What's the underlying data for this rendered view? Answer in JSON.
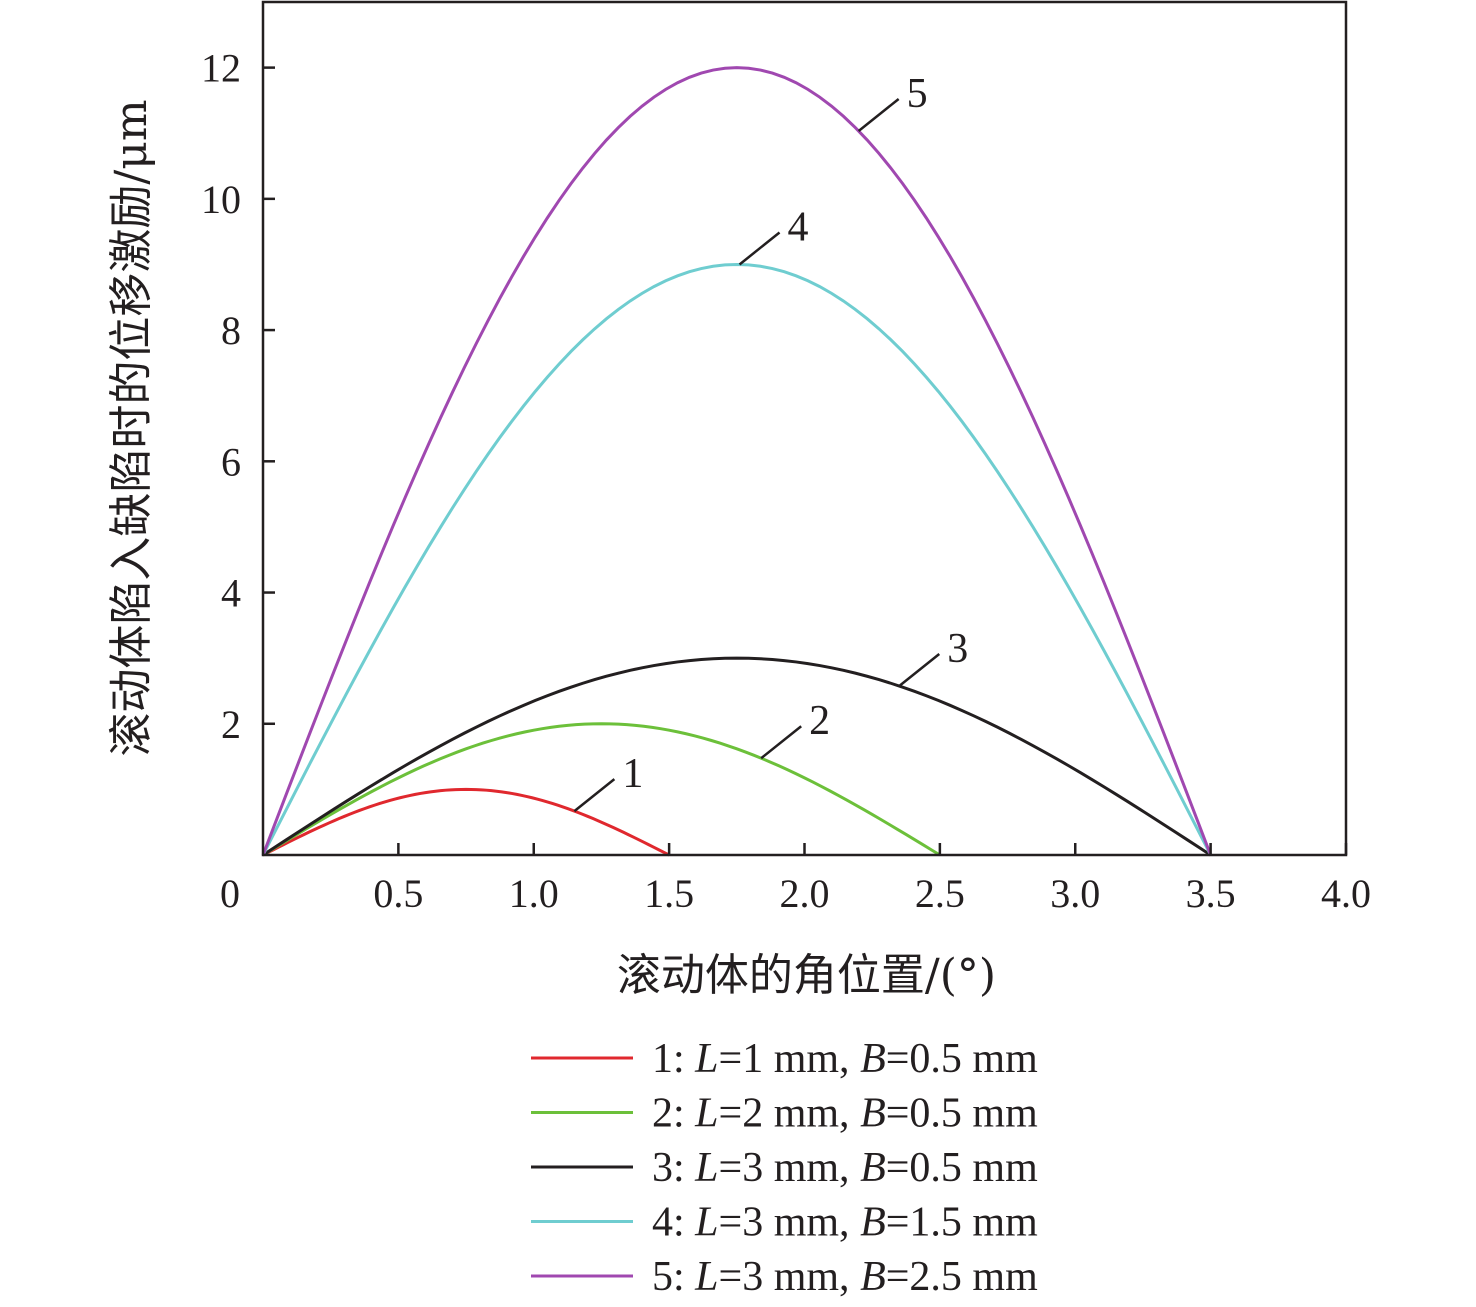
{
  "chart_data": {
    "type": "line",
    "xlabel": "滚动体的角位置/(°)",
    "ylabel": "滚动体陷入缺陷时的位移激励/μm",
    "xlim": [
      0,
      4.0
    ],
    "ylim": [
      0,
      13
    ],
    "x_ticks": [
      0.5,
      1.0,
      1.5,
      2.0,
      2.5,
      3.0,
      3.5,
      4.0
    ],
    "x_tick_labels": [
      "0.5",
      "1.0",
      "1.5",
      "2.0",
      "2.5",
      "3.0",
      "3.5",
      "4.0"
    ],
    "y_ticks": [
      2,
      4,
      6,
      8,
      10,
      12
    ],
    "y_tick_labels": [
      "2",
      "4",
      "6",
      "8",
      "10",
      "12"
    ],
    "origin_label": "0",
    "grid": false,
    "legend_position": "bottom",
    "series": [
      {
        "id": "1",
        "legend_num": "1: ",
        "legend_L": "L",
        "legend_L_text": "=1 mm, ",
        "legend_B": "B",
        "legend_B_text": "=0.5 mm",
        "color": "#e0282e",
        "x_start": 0,
        "x_end": 1.5,
        "peak": 1.0
      },
      {
        "id": "2",
        "legend_num": "2: ",
        "legend_L": "L",
        "legend_L_text": "=2 mm, ",
        "legend_B": "B",
        "legend_B_text": "=0.5 mm",
        "color": "#6cc03a",
        "x_start": 0,
        "x_end": 2.5,
        "peak": 2.0
      },
      {
        "id": "3",
        "legend_num": "3: ",
        "legend_L": "L",
        "legend_L_text": "=3 mm, ",
        "legend_B": "B",
        "legend_B_text": "=0.5 mm",
        "color": "#231f20",
        "x_start": 0,
        "x_end": 3.5,
        "peak": 3.0
      },
      {
        "id": "4",
        "legend_num": "4: ",
        "legend_L": "L",
        "legend_L_text": "=3 mm, ",
        "legend_B": "B",
        "legend_B_text": "=1.5 mm",
        "color": "#6fcdd0",
        "x_start": 0,
        "x_end": 3.5,
        "peak": 9.0
      },
      {
        "id": "5",
        "legend_num": "5: ",
        "legend_L": "L",
        "legend_L_text": "=3 mm, ",
        "legend_B": "B",
        "legend_B_text": "=2.5 mm",
        "color": "#a048b0",
        "x_start": 0,
        "x_end": 3.5,
        "peak": 12.0
      }
    ],
    "annotations": [
      {
        "text": "1",
        "series": "1",
        "at_x": 1.15
      },
      {
        "text": "2",
        "series": "2",
        "at_x": 1.84
      },
      {
        "text": "3",
        "series": "3",
        "at_x": 2.35
      },
      {
        "text": "4",
        "series": "4",
        "at_x": 1.76
      },
      {
        "text": "5",
        "series": "5",
        "at_x": 2.2
      }
    ]
  }
}
